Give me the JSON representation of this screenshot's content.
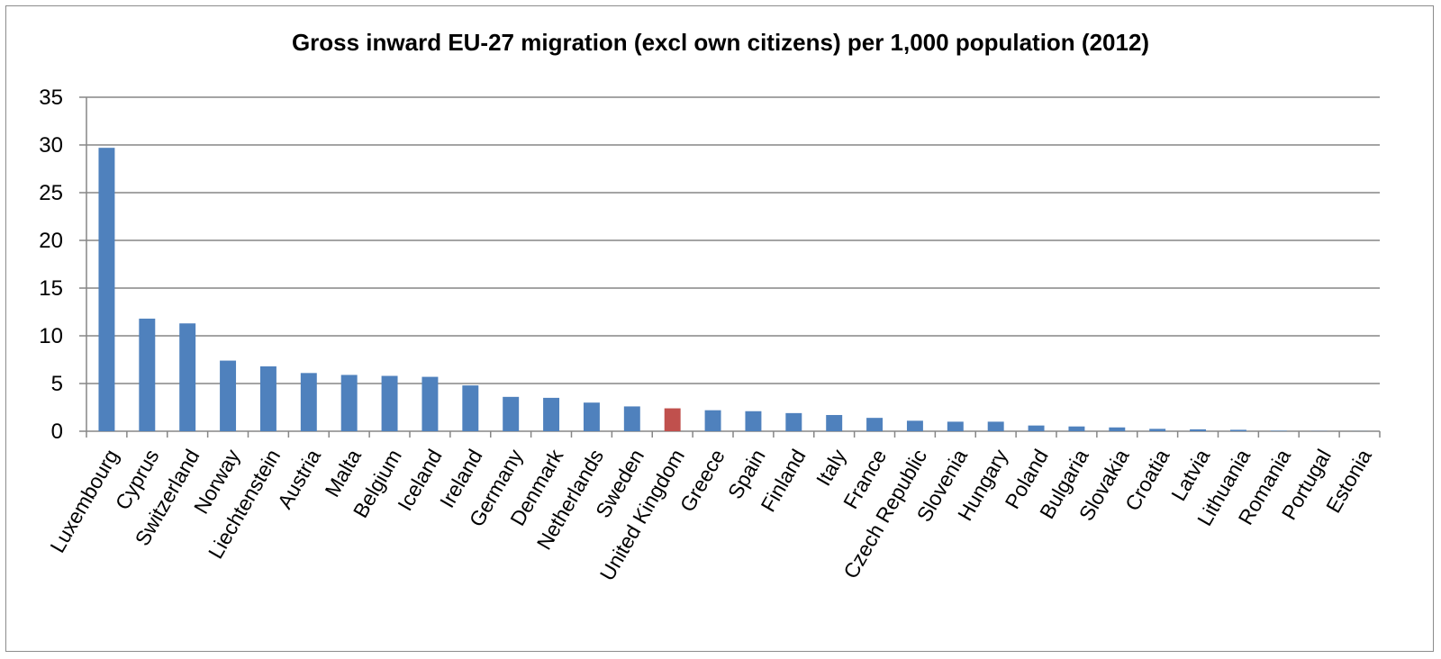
{
  "chart_data": {
    "type": "bar",
    "title": "Gross inward EU-27 migration (excl own citizens) per 1,000 population (2012)",
    "xlabel": "",
    "ylabel": "",
    "ylim": [
      0,
      35
    ],
    "yticks": [
      0,
      5,
      10,
      15,
      20,
      25,
      30,
      35
    ],
    "grid": true,
    "legend": "none",
    "categories": [
      "Luxembourg",
      "Cyprus",
      "Switzerland",
      "Norway",
      "Liechtenstein",
      "Austria",
      "Malta",
      "Belgium",
      "Iceland",
      "Ireland",
      "Germany",
      "Denmark",
      "Netherlands",
      "Sweden",
      "United Kingdom",
      "Greece",
      "Spain",
      "Finland",
      "Italy",
      "France",
      "Czech Republic",
      "Slovenia",
      "Hungary",
      "Poland",
      "Bulgaria",
      "Slovakia",
      "Croatia",
      "Latvia",
      "Lithuania",
      "Romania",
      "Portugal",
      "Estonia"
    ],
    "values": [
      29.7,
      11.8,
      11.3,
      7.4,
      6.8,
      6.1,
      5.9,
      5.8,
      5.7,
      4.8,
      3.6,
      3.5,
      3.0,
      2.6,
      2.4,
      2.2,
      2.1,
      1.9,
      1.7,
      1.4,
      1.1,
      1.0,
      1.0,
      0.6,
      0.5,
      0.4,
      0.25,
      0.2,
      0.15,
      0.05,
      0.02,
      0.01
    ],
    "colors": {
      "default": "#4f81bd",
      "highlight": "#c0504d",
      "highlight_category": "United Kingdom",
      "gridline": "#868686",
      "axis": "#868686"
    }
  }
}
